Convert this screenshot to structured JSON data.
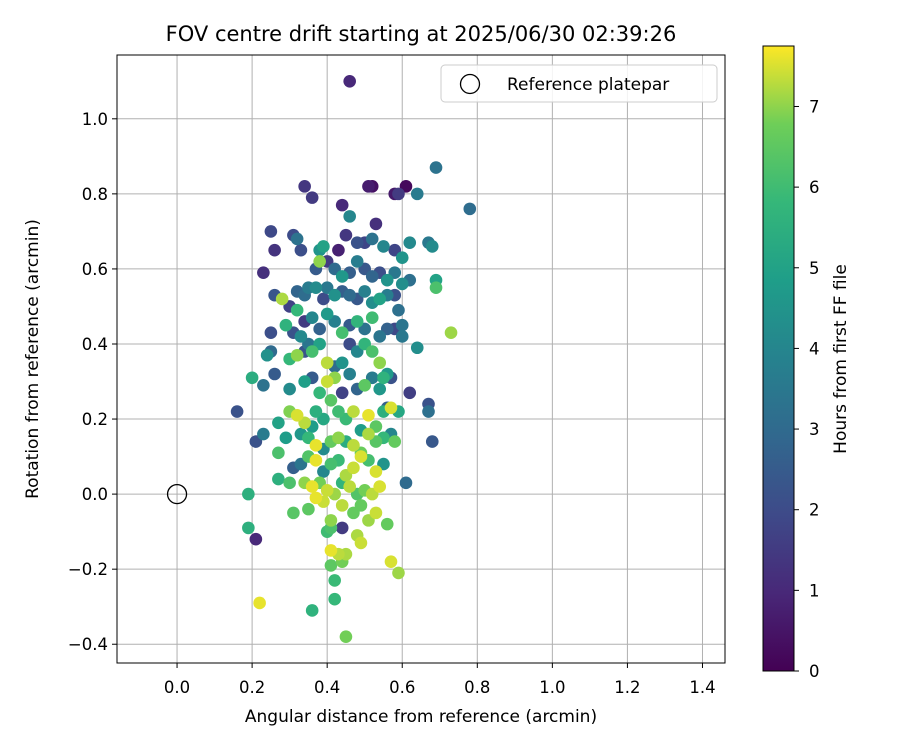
{
  "chart_data": {
    "type": "scatter",
    "title": "FOV centre drift starting at 2025/06/30 02:39:26",
    "xlabel": "Angular distance from reference (arcmin)",
    "ylabel": "Rotation from reference (arcmin)",
    "xlim": [
      -0.16,
      1.46
    ],
    "ylim": [
      -0.45,
      1.17
    ],
    "xticks": [
      "0.0",
      "0.2",
      "0.4",
      "0.6",
      "0.8",
      "1.0",
      "1.2",
      "1.4"
    ],
    "xtick_values": [
      0.0,
      0.2,
      0.4,
      0.6,
      0.8,
      1.0,
      1.2,
      1.4
    ],
    "yticks": [
      "−0.4",
      "−0.2",
      "0.0",
      "0.2",
      "0.4",
      "0.6",
      "0.8",
      "1.0"
    ],
    "ytick_values": [
      -0.4,
      -0.2,
      0.0,
      0.2,
      0.4,
      0.6,
      0.8,
      1.0
    ],
    "grid": true,
    "legend_position": "top-right",
    "legend": [
      "Reference platepar"
    ],
    "reference_point": {
      "x": 0.0,
      "y": 0.0
    },
    "colorbar": {
      "label": "Hours from first FF file",
      "min": 0,
      "max": 7.75,
      "ticks": [
        "0",
        "1",
        "2",
        "3",
        "4",
        "5",
        "6",
        "7"
      ],
      "tick_values": [
        0,
        1,
        2,
        3,
        4,
        5,
        6,
        7
      ],
      "colormap": "viridis"
    },
    "points": [
      [
        0.46,
        1.1,
        1.0
      ],
      [
        0.52,
        0.82,
        0.4
      ],
      [
        0.51,
        0.82,
        0.7
      ],
      [
        0.61,
        0.82,
        0.2
      ],
      [
        0.58,
        0.8,
        0.6
      ],
      [
        0.59,
        0.8,
        1.5
      ],
      [
        0.64,
        0.8,
        3.6
      ],
      [
        0.69,
        0.87,
        3.3
      ],
      [
        0.78,
        0.76,
        3.1
      ],
      [
        0.34,
        0.82,
        1.4
      ],
      [
        0.36,
        0.79,
        1.5
      ],
      [
        0.44,
        0.77,
        1.0
      ],
      [
        0.46,
        0.74,
        4.0
      ],
      [
        0.53,
        0.72,
        1.2
      ],
      [
        0.25,
        0.7,
        1.9
      ],
      [
        0.31,
        0.69,
        2.0
      ],
      [
        0.26,
        0.65,
        1.3
      ],
      [
        0.23,
        0.59,
        1.2
      ],
      [
        0.32,
        0.68,
        3.3
      ],
      [
        0.33,
        0.65,
        2.1
      ],
      [
        0.38,
        0.65,
        4.5
      ],
      [
        0.39,
        0.66,
        5.0
      ],
      [
        0.43,
        0.65,
        0.8
      ],
      [
        0.45,
        0.69,
        1.4
      ],
      [
        0.48,
        0.67,
        2.2
      ],
      [
        0.5,
        0.67,
        1.8
      ],
      [
        0.52,
        0.68,
        3.3
      ],
      [
        0.55,
        0.66,
        4.0
      ],
      [
        0.58,
        0.65,
        1.8
      ],
      [
        0.6,
        0.63,
        4.5
      ],
      [
        0.62,
        0.67,
        4.1
      ],
      [
        0.67,
        0.67,
        3.5
      ],
      [
        0.68,
        0.66,
        4.2
      ],
      [
        0.38,
        0.62,
        7.0
      ],
      [
        0.37,
        0.6,
        2.5
      ],
      [
        0.4,
        0.62,
        1.5
      ],
      [
        0.42,
        0.6,
        3.0
      ],
      [
        0.44,
        0.58,
        4.6
      ],
      [
        0.46,
        0.59,
        2.6
      ],
      [
        0.48,
        0.62,
        3.7
      ],
      [
        0.5,
        0.6,
        2.4
      ],
      [
        0.52,
        0.58,
        2.8
      ],
      [
        0.54,
        0.59,
        2.1
      ],
      [
        0.56,
        0.57,
        4.5
      ],
      [
        0.58,
        0.59,
        3.5
      ],
      [
        0.6,
        0.56,
        4.3
      ],
      [
        0.62,
        0.57,
        3.2
      ],
      [
        0.69,
        0.57,
        5.0
      ],
      [
        0.69,
        0.55,
        6.2
      ],
      [
        0.26,
        0.53,
        2.3
      ],
      [
        0.28,
        0.52,
        7.2
      ],
      [
        0.32,
        0.54,
        2.8
      ],
      [
        0.34,
        0.53,
        3.1
      ],
      [
        0.35,
        0.55,
        3.6
      ],
      [
        0.37,
        0.55,
        4.2
      ],
      [
        0.39,
        0.52,
        2.0
      ],
      [
        0.4,
        0.55,
        3.5
      ],
      [
        0.42,
        0.53,
        4.4
      ],
      [
        0.44,
        0.54,
        2.6
      ],
      [
        0.46,
        0.53,
        3.0
      ],
      [
        0.48,
        0.52,
        2.4
      ],
      [
        0.5,
        0.54,
        3.8
      ],
      [
        0.52,
        0.51,
        4.3
      ],
      [
        0.54,
        0.52,
        5.0
      ],
      [
        0.56,
        0.53,
        3.7
      ],
      [
        0.58,
        0.53,
        2.2
      ],
      [
        0.59,
        0.49,
        3.2
      ],
      [
        0.6,
        0.45,
        3.4
      ],
      [
        0.3,
        0.5,
        1.7
      ],
      [
        0.32,
        0.49,
        5.8
      ],
      [
        0.34,
        0.46,
        1.5
      ],
      [
        0.36,
        0.47,
        4.0
      ],
      [
        0.38,
        0.44,
        2.7
      ],
      [
        0.4,
        0.48,
        4.7
      ],
      [
        0.42,
        0.46,
        3.8
      ],
      [
        0.44,
        0.43,
        6.1
      ],
      [
        0.46,
        0.45,
        2.5
      ],
      [
        0.48,
        0.46,
        5.7
      ],
      [
        0.5,
        0.44,
        3.3
      ],
      [
        0.52,
        0.47,
        6.0
      ],
      [
        0.54,
        0.42,
        3.4
      ],
      [
        0.56,
        0.44,
        2.7
      ],
      [
        0.58,
        0.44,
        1.9
      ],
      [
        0.6,
        0.42,
        3.5
      ],
      [
        0.64,
        0.39,
        4.3
      ],
      [
        0.29,
        0.45,
        5.6
      ],
      [
        0.31,
        0.43,
        2.2
      ],
      [
        0.33,
        0.42,
        4.1
      ],
      [
        0.35,
        0.4,
        3.4
      ],
      [
        0.25,
        0.43,
        2.1
      ],
      [
        0.25,
        0.38,
        3.0
      ],
      [
        0.24,
        0.37,
        4.4
      ],
      [
        0.26,
        0.32,
        2.5
      ],
      [
        0.3,
        0.36,
        5.8
      ],
      [
        0.32,
        0.37,
        7.0
      ],
      [
        0.34,
        0.38,
        2.3
      ],
      [
        0.36,
        0.38,
        6.1
      ],
      [
        0.38,
        0.4,
        5.0
      ],
      [
        0.4,
        0.35,
        7.3
      ],
      [
        0.42,
        0.34,
        3.1
      ],
      [
        0.44,
        0.35,
        4.5
      ],
      [
        0.46,
        0.4,
        2.0
      ],
      [
        0.48,
        0.38,
        4.0
      ],
      [
        0.5,
        0.4,
        5.7
      ],
      [
        0.52,
        0.38,
        6.2
      ],
      [
        0.54,
        0.35,
        7.0
      ],
      [
        0.56,
        0.32,
        4.7
      ],
      [
        0.57,
        0.31,
        2.2
      ],
      [
        0.62,
        0.27,
        1.6
      ],
      [
        0.73,
        0.43,
        7.1
      ],
      [
        0.2,
        0.31,
        5.4
      ],
      [
        0.23,
        0.29,
        3.3
      ],
      [
        0.3,
        0.28,
        4.2
      ],
      [
        0.34,
        0.3,
        4.9
      ],
      [
        0.36,
        0.31,
        2.5
      ],
      [
        0.38,
        0.27,
        5.8
      ],
      [
        0.4,
        0.3,
        7.4
      ],
      [
        0.42,
        0.31,
        7.0
      ],
      [
        0.44,
        0.27,
        1.7
      ],
      [
        0.46,
        0.32,
        3.8
      ],
      [
        0.48,
        0.28,
        2.8
      ],
      [
        0.5,
        0.29,
        6.5
      ],
      [
        0.52,
        0.31,
        3.6
      ],
      [
        0.54,
        0.28,
        4.6
      ],
      [
        0.55,
        0.31,
        5.6
      ],
      [
        0.16,
        0.22,
        2.2
      ],
      [
        0.3,
        0.22,
        6.9
      ],
      [
        0.32,
        0.21,
        7.5
      ],
      [
        0.34,
        0.19,
        7.3
      ],
      [
        0.36,
        0.18,
        4.8
      ],
      [
        0.37,
        0.22,
        5.5
      ],
      [
        0.39,
        0.2,
        5.2
      ],
      [
        0.41,
        0.25,
        6.4
      ],
      [
        0.43,
        0.22,
        6.0
      ],
      [
        0.45,
        0.2,
        5.9
      ],
      [
        0.47,
        0.22,
        7.3
      ],
      [
        0.49,
        0.17,
        4.8
      ],
      [
        0.51,
        0.21,
        7.6
      ],
      [
        0.53,
        0.18,
        6.5
      ],
      [
        0.55,
        0.22,
        5.5
      ],
      [
        0.56,
        0.23,
        2.6
      ],
      [
        0.57,
        0.23,
        7.5
      ],
      [
        0.59,
        0.22,
        5.2
      ],
      [
        0.67,
        0.24,
        2.2
      ],
      [
        0.67,
        0.22,
        3.2
      ],
      [
        0.68,
        0.14,
        2.4
      ],
      [
        0.21,
        0.14,
        2.2
      ],
      [
        0.23,
        0.16,
        3.6
      ],
      [
        0.27,
        0.19,
        5.0
      ],
      [
        0.29,
        0.15,
        4.8
      ],
      [
        0.33,
        0.16,
        4.6
      ],
      [
        0.35,
        0.15,
        5.8
      ],
      [
        0.37,
        0.13,
        7.6
      ],
      [
        0.39,
        0.12,
        4.2
      ],
      [
        0.41,
        0.14,
        6.6
      ],
      [
        0.43,
        0.15,
        7.0
      ],
      [
        0.45,
        0.14,
        5.4
      ],
      [
        0.47,
        0.13,
        7.3
      ],
      [
        0.49,
        0.11,
        6.7
      ],
      [
        0.51,
        0.16,
        7.2
      ],
      [
        0.53,
        0.14,
        6.4
      ],
      [
        0.55,
        0.15,
        5.8
      ],
      [
        0.57,
        0.16,
        4.0
      ],
      [
        0.58,
        0.14,
        6.6
      ],
      [
        0.27,
        0.11,
        6.2
      ],
      [
        0.31,
        0.07,
        2.6
      ],
      [
        0.33,
        0.08,
        3.4
      ],
      [
        0.35,
        0.1,
        6.3
      ],
      [
        0.37,
        0.09,
        7.6
      ],
      [
        0.39,
        0.06,
        4.0
      ],
      [
        0.41,
        0.08,
        6.1
      ],
      [
        0.43,
        0.09,
        5.9
      ],
      [
        0.45,
        0.05,
        7.2
      ],
      [
        0.47,
        0.07,
        7.4
      ],
      [
        0.49,
        0.1,
        7.5
      ],
      [
        0.51,
        0.09,
        6.1
      ],
      [
        0.53,
        0.06,
        7.5
      ],
      [
        0.55,
        0.08,
        4.5
      ],
      [
        0.27,
        0.04,
        5.5
      ],
      [
        0.3,
        0.03,
        6.2
      ],
      [
        0.34,
        0.03,
        7.0
      ],
      [
        0.36,
        0.02,
        7.6
      ],
      [
        0.38,
        0.03,
        6.8
      ],
      [
        0.4,
        0.01,
        7.4
      ],
      [
        0.42,
        0.0,
        7.1
      ],
      [
        0.44,
        0.03,
        5.7
      ],
      [
        0.46,
        0.02,
        7.3
      ],
      [
        0.48,
        0.0,
        6.3
      ],
      [
        0.5,
        0.01,
        6.8
      ],
      [
        0.52,
        0.0,
        7.3
      ],
      [
        0.54,
        0.02,
        7.5
      ],
      [
        0.61,
        0.03,
        3.0
      ],
      [
        0.19,
        0.0,
        5.5
      ],
      [
        0.31,
        -0.05,
        6.4
      ],
      [
        0.35,
        -0.04,
        6.5
      ],
      [
        0.37,
        -0.01,
        7.6
      ],
      [
        0.39,
        -0.02,
        7.4
      ],
      [
        0.41,
        -0.07,
        7.0
      ],
      [
        0.44,
        -0.03,
        7.3
      ],
      [
        0.47,
        -0.05,
        6.6
      ],
      [
        0.49,
        -0.03,
        6.6
      ],
      [
        0.51,
        -0.07,
        7.1
      ],
      [
        0.53,
        -0.05,
        7.4
      ],
      [
        0.56,
        -0.08,
        6.6
      ],
      [
        0.19,
        -0.09,
        5.5
      ],
      [
        0.21,
        -0.12,
        1.0
      ],
      [
        0.4,
        -0.1,
        6.0
      ],
      [
        0.41,
        -0.09,
        6.2
      ],
      [
        0.44,
        -0.09,
        1.5
      ],
      [
        0.48,
        -0.11,
        7.2
      ],
      [
        0.49,
        -0.13,
        7.4
      ],
      [
        0.41,
        -0.15,
        7.6
      ],
      [
        0.43,
        -0.16,
        7.3
      ],
      [
        0.44,
        -0.18,
        6.8
      ],
      [
        0.45,
        -0.16,
        7.2
      ],
      [
        0.41,
        -0.19,
        6.5
      ],
      [
        0.42,
        -0.23,
        5.9
      ],
      [
        0.57,
        -0.18,
        7.5
      ],
      [
        0.59,
        -0.21,
        7.1
      ],
      [
        0.42,
        -0.28,
        5.8
      ],
      [
        0.22,
        -0.29,
        7.6
      ],
      [
        0.36,
        -0.31,
        5.6
      ],
      [
        0.45,
        -0.38,
        6.8
      ]
    ]
  }
}
